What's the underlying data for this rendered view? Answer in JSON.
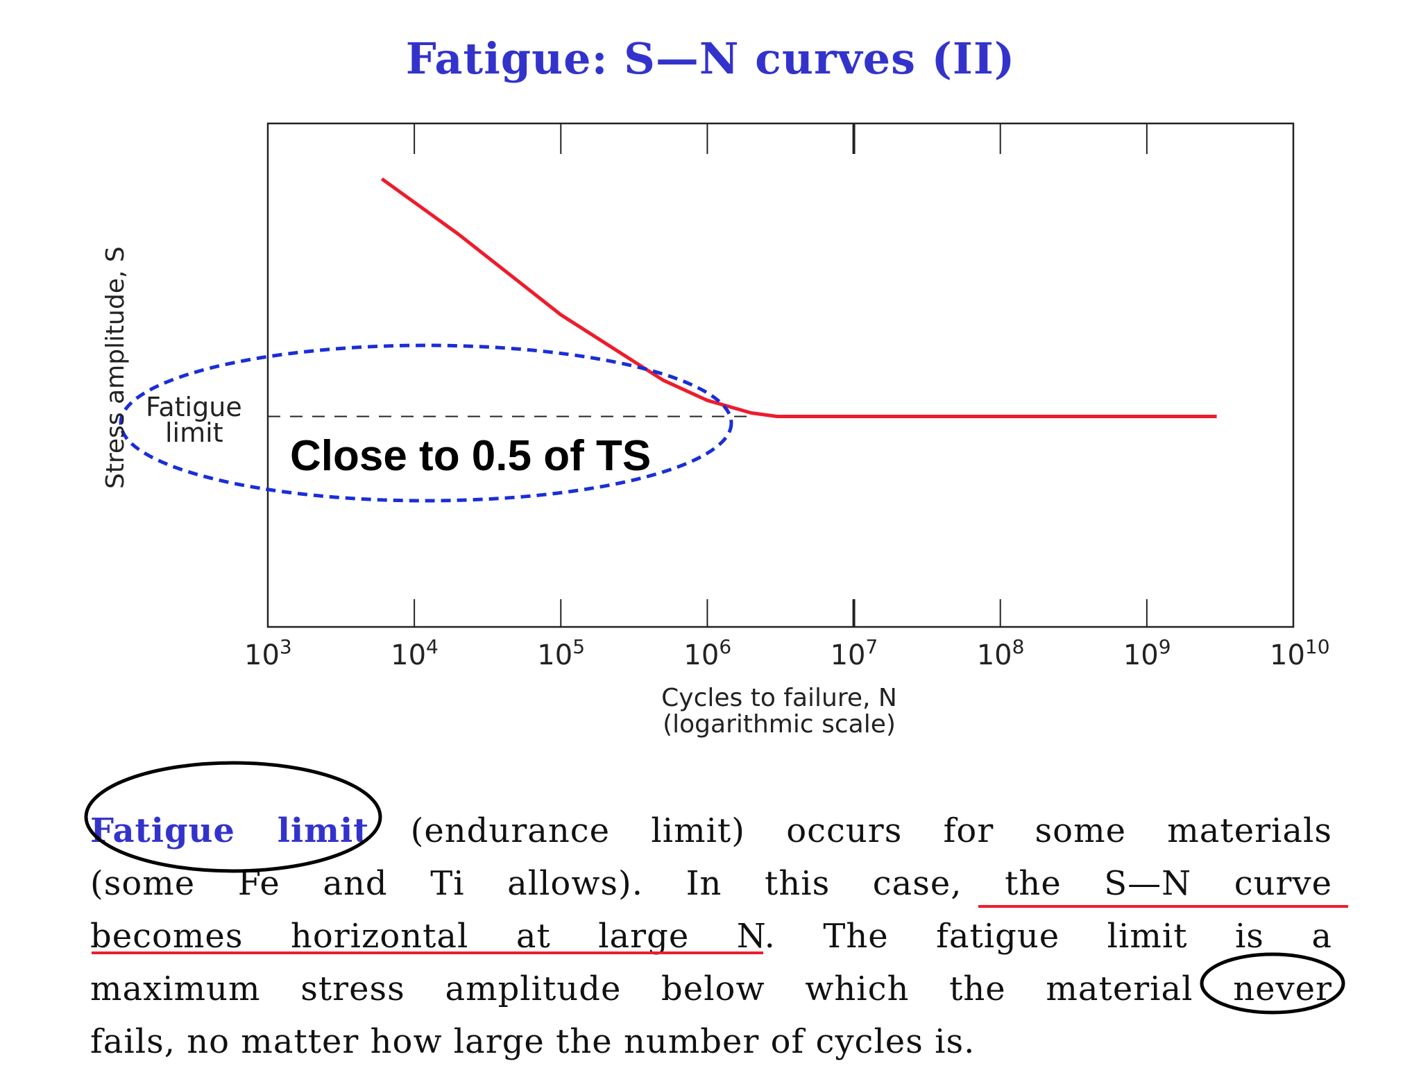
{
  "title": "Fatigue: S—N curves (II)",
  "chart_data": {
    "type": "line",
    "x_scale": "log",
    "xlim": [
      1000,
      10000000000
    ],
    "x_ticks": [
      {
        "base": "10",
        "exp": "3"
      },
      {
        "base": "10",
        "exp": "4"
      },
      {
        "base": "10",
        "exp": "5"
      },
      {
        "base": "10",
        "exp": "6"
      },
      {
        "base": "10",
        "exp": "7"
      },
      {
        "base": "10",
        "exp": "8"
      },
      {
        "base": "10",
        "exp": "9"
      },
      {
        "base": "10",
        "exp": "10"
      }
    ],
    "xlabel_line1": "Cycles to failure, N",
    "xlabel_line2": "(logarithmic scale)",
    "ylabel": "Stress amplitude, S",
    "ylim": [
      0,
      1
    ],
    "series": [
      {
        "name": "S-N curve",
        "color": "#ee1c2b",
        "points": [
          [
            6000,
            0.89
          ],
          [
            20000,
            0.78
          ],
          [
            100000,
            0.62
          ],
          [
            500000,
            0.49
          ],
          [
            1000000,
            0.45
          ],
          [
            2000000,
            0.425
          ],
          [
            3000000,
            0.418
          ],
          [
            3000000000,
            0.418
          ]
        ]
      }
    ],
    "fatigue_limit_value": 0.418,
    "annotations": {
      "fatigue_limit_line1": "Fatigue",
      "fatigue_limit_line2": "limit",
      "callout": "Close to 0.5 of TS"
    }
  },
  "body": {
    "lines": [
      {
        "term": "Fatigue limit",
        "text": " (endurance limit) occurs for some materials"
      },
      {
        "text": "(some Fe and Ti allows). In this case, the S—N curve"
      },
      {
        "text": "becomes horizontal at large N.  The fatigue limit is a"
      },
      {
        "text": "maximum stress amplitude below which the material never"
      },
      {
        "text": "fails, no matter how large the number of cycles is."
      }
    ]
  },
  "colors": {
    "title": "#3333cc",
    "curve": "#ee1c2b",
    "ellipse_blue": "#1a2ed6",
    "underline_red": "#ee1c2b",
    "circle_black": "#000000"
  }
}
